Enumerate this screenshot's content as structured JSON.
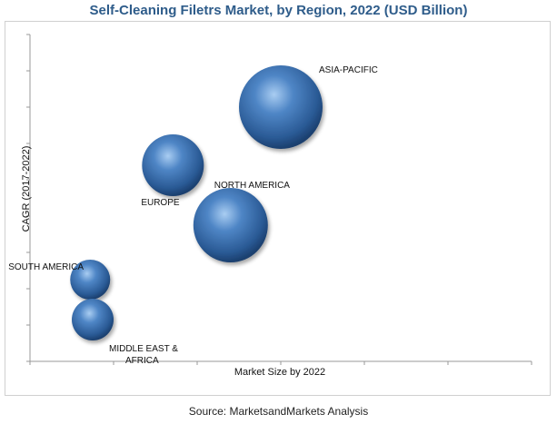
{
  "title": "Self-Cleaning Filetrs Market, by Region, 2022 (USD Billion)",
  "source": "Source: MarketsandMarkets Analysis",
  "chart_data": {
    "type": "scatter",
    "subtype": "bubble",
    "title": "Self-Cleaning Filetrs Market, by Region, 2022 (USD Billion)",
    "xlabel": "Market Size by 2022",
    "ylabel": "CAGR (2017-2022)",
    "xlim": [
      0,
      10
    ],
    "ylim": [
      0,
      9
    ],
    "grid": false,
    "bubble_color": "#3a6ea8",
    "points": [
      {
        "name": "ASIA-PACIFIC",
        "label_lines": [
          "ASIA-PACIFIC"
        ],
        "x": 5.0,
        "y": 7.0,
        "size": 2.3
      },
      {
        "name": "EUROPE",
        "label_lines": [
          "EUROPE"
        ],
        "x": 2.85,
        "y": 5.4,
        "size": 1.7
      },
      {
        "name": "NORTH AMERICA",
        "label_lines": [
          "NORTH AMERICA"
        ],
        "x": 4.0,
        "y": 3.75,
        "size": 2.05
      },
      {
        "name": "SOUTH AMERICA",
        "label_lines": [
          "SOUTH AMERICA"
        ],
        "x": 1.2,
        "y": 2.25,
        "size": 1.1
      },
      {
        "name": "MIDDLE EAST & AFRICA",
        "label_lines": [
          "MIDDLE EAST &",
          "AFRICA"
        ],
        "x": 1.25,
        "y": 1.15,
        "size": 1.15
      }
    ]
  }
}
